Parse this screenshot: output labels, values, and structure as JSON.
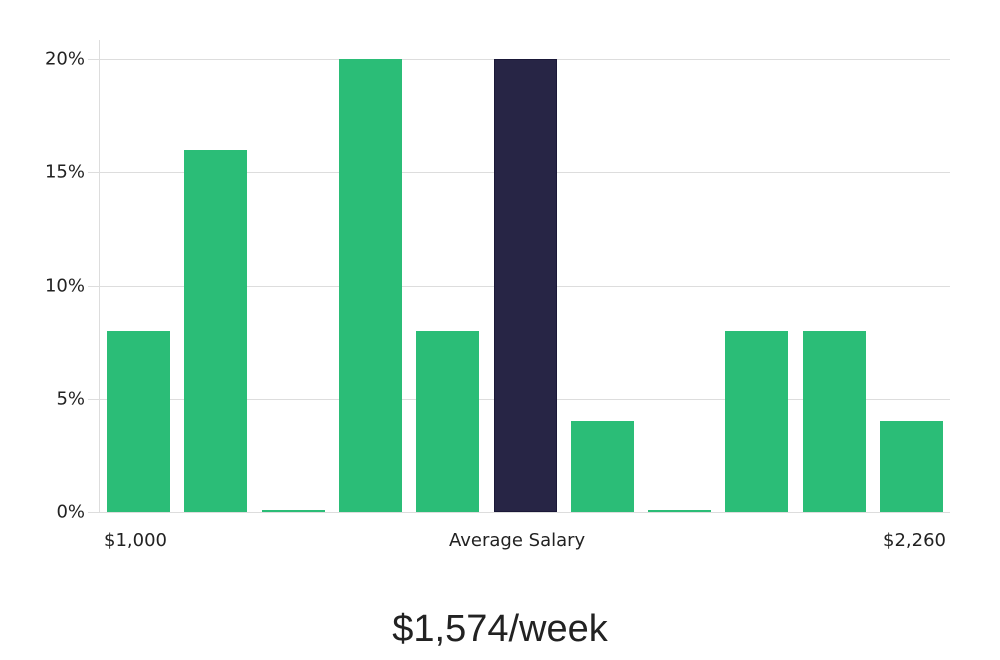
{
  "chart_data": {
    "type": "bar",
    "title": "",
    "xlabel": "Average Salary",
    "ylabel": "",
    "ylim": [
      0,
      20
    ],
    "y_ticks": [
      "0%",
      "5%",
      "10%",
      "15%",
      "20%"
    ],
    "x_range_labels": {
      "min": "$1,000",
      "max": "$2,260"
    },
    "grid": true,
    "categories": [
      "bin1",
      "bin2",
      "bin3",
      "bin4",
      "bin5",
      "bin6",
      "bin7",
      "bin8",
      "bin9",
      "bin10",
      "bin11"
    ],
    "values": [
      8,
      16,
      0,
      20,
      8,
      20,
      4,
      0,
      8,
      8,
      4
    ],
    "highlight_index": 5,
    "colors": {
      "bar": "#2bbd77",
      "highlight": "#272545",
      "grid": "#dddddd"
    }
  },
  "summary": {
    "value": "$1,574/week"
  }
}
